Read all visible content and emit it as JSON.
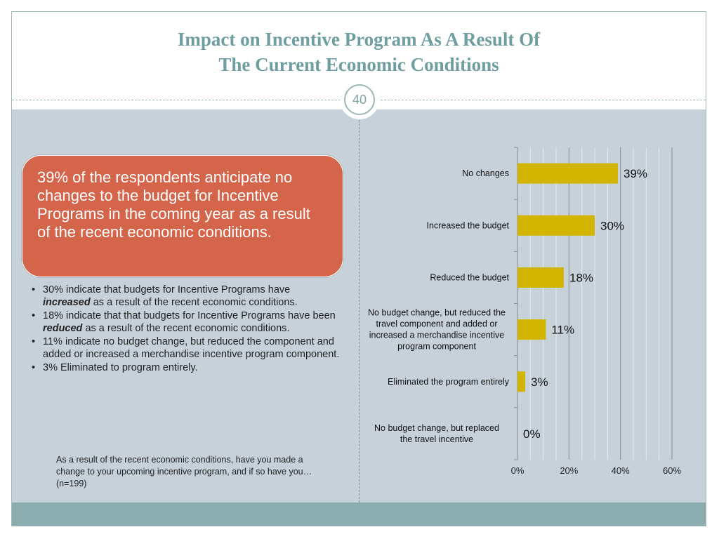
{
  "slide": {
    "title_line1": "Impact on Incentive Program As A Result Of",
    "title_line2": "The Current Economic Conditions",
    "slide_number": "40"
  },
  "callout": {
    "text": "39% of the respondents anticipate no changes to the budget for Incentive Programs in the coming year as a result of the recent economic conditions."
  },
  "bullets": [
    {
      "before": "30% indicate that budgets for Incentive Programs have ",
      "emph": "increased",
      "after": " as a result of the recent economic conditions."
    },
    {
      "before": "18% indicate that that budgets for Incentive Programs have been ",
      "emph": "reduced",
      "after": " as a result of the recent economic conditions."
    },
    {
      "before": "11% indicate no budget change, but reduced the component and added or increased a merchandise incentive program component.",
      "emph": "",
      "after": ""
    },
    {
      "before": "3% Eliminated to program entirely.",
      "emph": "",
      "after": ""
    }
  ],
  "footnote": "As a result of the recent economic conditions, have you made a change to your upcoming incentive program, and if so have you… (n=199)",
  "colors": {
    "bar": "#d1b500",
    "callout": "#d4644a",
    "title": "#6e9ea0",
    "body_bg": "#c6d1d9",
    "footer_band": "#8badb0"
  },
  "chart_data": {
    "type": "bar",
    "orientation": "horizontal",
    "categories": [
      "No changes",
      "Increased the budget",
      "Reduced the budget",
      "No budget change, but reduced the travel component and added or increased a merchandise incentive program component",
      "Eliminated the program entirely",
      "No budget change, but replaced the travel incentive"
    ],
    "values": [
      39,
      30,
      18,
      11,
      3,
      0
    ],
    "data_labels": [
      "39%",
      "30%",
      "18%",
      "11%",
      "3%",
      "0%"
    ],
    "xlim": [
      0,
      60
    ],
    "x_ticks": [
      "0%",
      "20%",
      "40%",
      "60%"
    ],
    "x_tick_values": [
      0,
      20,
      40,
      60
    ],
    "grid": true
  }
}
